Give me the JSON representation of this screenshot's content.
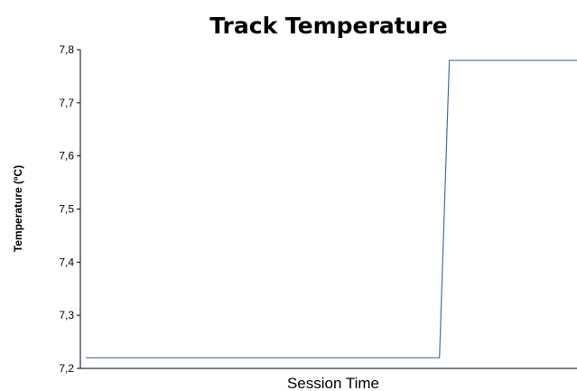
{
  "chart_data": {
    "type": "line",
    "title": "Track Temperature",
    "xlabel": "Session Time",
    "ylabel": "Temperature (ºC)",
    "ylim": [
      7.2,
      7.8
    ],
    "yticks": [
      "7,8",
      "7,7",
      "7,6",
      "7,5",
      "7,4",
      "7,3",
      "7,2"
    ],
    "ytick_values": [
      7.8,
      7.7,
      7.6,
      7.5,
      7.4,
      7.3,
      7.2
    ],
    "grid": false,
    "legend": "none",
    "series": [
      {
        "color": "#4a6fa5",
        "x": [
          0,
          0.72,
          0.74,
          1.0
        ],
        "values": [
          7.22,
          7.22,
          7.78,
          7.78
        ]
      }
    ]
  }
}
